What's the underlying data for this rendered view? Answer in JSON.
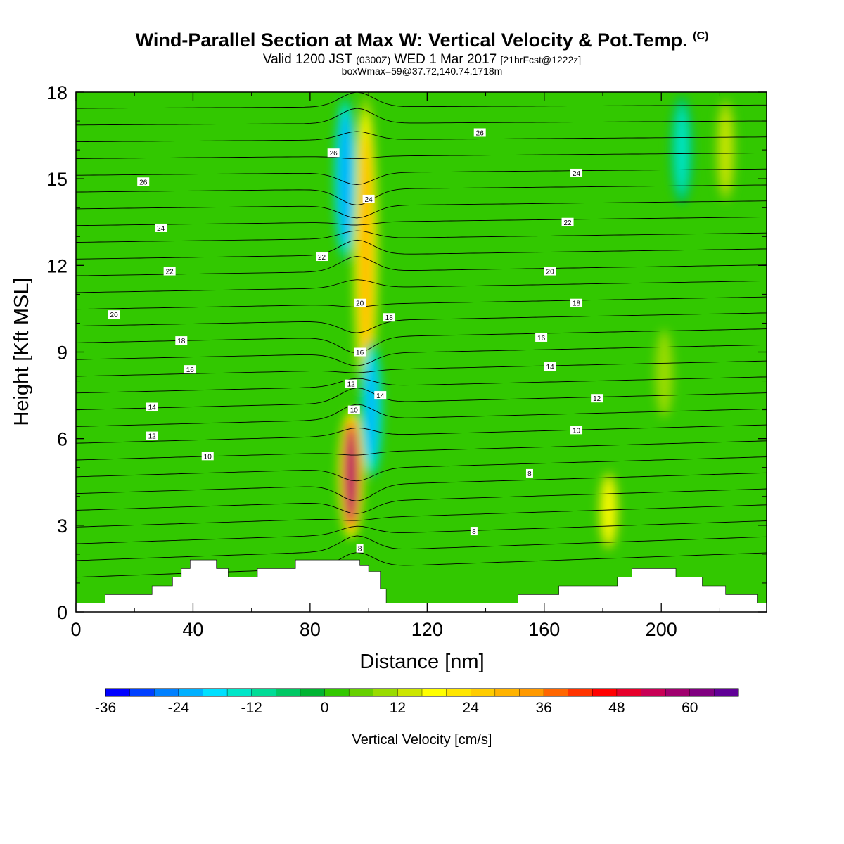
{
  "titles": {
    "main": "Wind-Parallel Section at Max W: Vertical Velocity & Pot.Temp.",
    "main_mark": "(C)",
    "valid_prefix": "Valid 1200 JST",
    "valid_utc": "(0300Z)",
    "valid_day": "WED 1 Mar 2017",
    "valid_fcst": "[21hrFcst@1222z]",
    "box_info": "boxWmax=59@37.72,140.74,1718m"
  },
  "chart_data": {
    "type": "heatmap",
    "xlabel": "Distance [nm]",
    "ylabel": "Height [Kft MSL]",
    "xlim": [
      0,
      236
    ],
    "ylim": [
      0,
      18
    ],
    "x_ticks": [
      0,
      40,
      80,
      120,
      160,
      200
    ],
    "y_ticks": [
      0,
      3,
      6,
      9,
      12,
      15,
      18
    ],
    "grid": false,
    "colorbar": {
      "label": "Vertical Velocity [cm/s]",
      "min": -36,
      "max": 68,
      "step": 4,
      "tick_values": [
        -36,
        -24,
        -12,
        0,
        12,
        24,
        36,
        48,
        60
      ],
      "colors": [
        "#0000ff",
        "#0040ff",
        "#0080ff",
        "#00b0ff",
        "#00e0ff",
        "#00e6c8",
        "#00dc96",
        "#00c864",
        "#00b432",
        "#32c800",
        "#66d000",
        "#99dc00",
        "#cce600",
        "#ffff00",
        "#ffe600",
        "#ffcc00",
        "#ffb300",
        "#ff9900",
        "#ff6600",
        "#ff3300",
        "#ff0000",
        "#e6002a",
        "#c80055",
        "#a0006e",
        "#800080",
        "#600096"
      ]
    },
    "vertical_velocity_features": [
      {
        "kind": "updraft",
        "x": 94,
        "y_bottom": 2.5,
        "y_top": 7.0,
        "peak": 59
      },
      {
        "kind": "updraft",
        "x": 99,
        "y_bottom": 7.0,
        "y_top": 18,
        "peak": 30
      },
      {
        "kind": "downdraft",
        "x": 92,
        "y_bottom": 12,
        "y_top": 18,
        "peak": -24
      },
      {
        "kind": "downdraft",
        "x": 101,
        "y_bottom": 4.5,
        "y_top": 9.5,
        "peak": -22
      },
      {
        "kind": "updraft",
        "x": 182,
        "y_bottom": 2.0,
        "y_top": 5.0,
        "peak": 18
      },
      {
        "kind": "updraft",
        "x": 201,
        "y_bottom": 6.5,
        "y_top": 10,
        "peak": 12
      },
      {
        "kind": "downdraft",
        "x": 207,
        "y_bottom": 14,
        "y_top": 18,
        "peak": -14
      },
      {
        "kind": "updraft",
        "x": 222,
        "y_bottom": 14,
        "y_top": 18,
        "peak": 14
      }
    ],
    "potential_temperature_labels": [
      {
        "text": "26",
        "x": 23,
        "y": 14.9
      },
      {
        "text": "24",
        "x": 29,
        "y": 13.3
      },
      {
        "text": "22",
        "x": 32,
        "y": 11.8
      },
      {
        "text": "20",
        "x": 13,
        "y": 10.3
      },
      {
        "text": "18",
        "x": 36,
        "y": 9.4
      },
      {
        "text": "16",
        "x": 39,
        "y": 8.4
      },
      {
        "text": "14",
        "x": 26,
        "y": 7.1
      },
      {
        "text": "12",
        "x": 26,
        "y": 6.1
      },
      {
        "text": "10",
        "x": 45,
        "y": 5.4
      },
      {
        "text": "26",
        "x": 88,
        "y": 15.9
      },
      {
        "text": "24",
        "x": 100,
        "y": 14.3
      },
      {
        "text": "22",
        "x": 84,
        "y": 12.3
      },
      {
        "text": "20",
        "x": 97,
        "y": 10.7
      },
      {
        "text": "18",
        "x": 107,
        "y": 10.2
      },
      {
        "text": "16",
        "x": 97,
        "y": 9.0
      },
      {
        "text": "12",
        "x": 94,
        "y": 7.9
      },
      {
        "text": "14",
        "x": 104,
        "y": 7.5
      },
      {
        "text": "10",
        "x": 95,
        "y": 7.0
      },
      {
        "text": "8",
        "x": 97,
        "y": 2.2
      },
      {
        "text": "26",
        "x": 138,
        "y": 16.6
      },
      {
        "text": "24",
        "x": 171,
        "y": 15.2
      },
      {
        "text": "22",
        "x": 168,
        "y": 13.5
      },
      {
        "text": "20",
        "x": 162,
        "y": 11.8
      },
      {
        "text": "18",
        "x": 171,
        "y": 10.7
      },
      {
        "text": "16",
        "x": 159,
        "y": 9.5
      },
      {
        "text": "14",
        "x": 162,
        "y": 8.5
      },
      {
        "text": "12",
        "x": 178,
        "y": 7.4
      },
      {
        "text": "10",
        "x": 171,
        "y": 6.3
      },
      {
        "text": "8",
        "x": 155,
        "y": 4.8
      },
      {
        "text": "8",
        "x": 136,
        "y": 2.8
      }
    ],
    "terrain_top": [
      [
        0,
        0.3
      ],
      [
        10,
        0.3
      ],
      [
        10,
        0.6
      ],
      [
        26,
        0.6
      ],
      [
        26,
        0.9
      ],
      [
        33,
        0.9
      ],
      [
        33,
        1.2
      ],
      [
        36,
        1.2
      ],
      [
        36,
        1.5
      ],
      [
        39,
        1.5
      ],
      [
        39,
        1.8
      ],
      [
        48,
        1.8
      ],
      [
        48,
        1.5
      ],
      [
        52,
        1.5
      ],
      [
        52,
        1.2
      ],
      [
        62,
        1.2
      ],
      [
        62,
        1.5
      ],
      [
        75,
        1.5
      ],
      [
        75,
        1.8
      ],
      [
        97,
        1.8
      ],
      [
        97,
        1.6
      ],
      [
        100,
        1.6
      ],
      [
        100,
        1.4
      ],
      [
        104,
        1.4
      ],
      [
        104,
        0.8
      ],
      [
        106,
        0.8
      ],
      [
        106,
        0.3
      ],
      [
        151,
        0.3
      ],
      [
        151,
        0.6
      ],
      [
        165,
        0.6
      ],
      [
        165,
        0.9
      ],
      [
        185,
        0.9
      ],
      [
        185,
        1.2
      ],
      [
        190,
        1.2
      ],
      [
        190,
        1.5
      ],
      [
        205,
        1.5
      ],
      [
        205,
        1.2
      ],
      [
        214,
        1.2
      ],
      [
        214,
        0.9
      ],
      [
        222,
        0.9
      ],
      [
        222,
        0.6
      ],
      [
        233,
        0.6
      ],
      [
        233,
        0.3
      ],
      [
        236,
        0.3
      ]
    ]
  }
}
